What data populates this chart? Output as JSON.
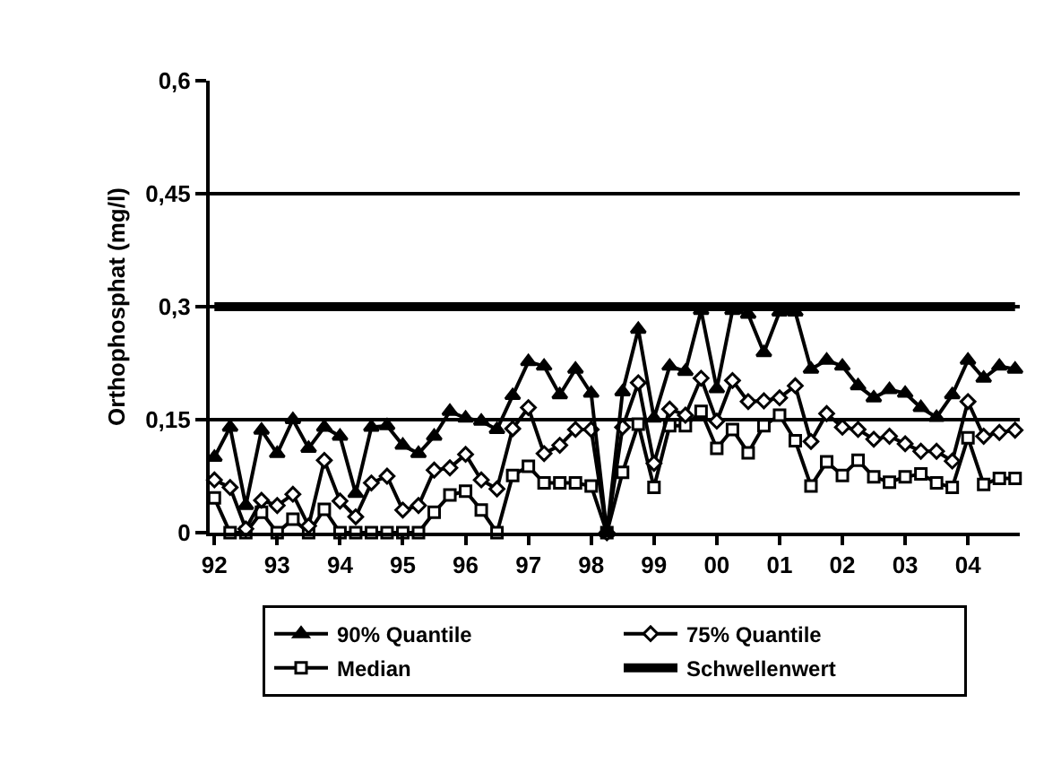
{
  "chart_data": {
    "type": "line",
    "ylabel": "Orthophosphat (mg/l)",
    "categories": [
      "92",
      null,
      null,
      null,
      "93",
      null,
      null,
      null,
      "94",
      null,
      null,
      null,
      "95",
      null,
      null,
      null,
      "96",
      null,
      null,
      null,
      "97",
      null,
      null,
      null,
      "98",
      null,
      null,
      null,
      "99",
      null,
      null,
      null,
      "00",
      null,
      null,
      null,
      "01",
      null,
      null,
      null,
      "02",
      null,
      null,
      null,
      "03",
      null,
      null,
      null,
      "04",
      null,
      null,
      null
    ],
    "series": [
      {
        "name": "90% Quantile",
        "color": "#000000",
        "marker": "triangle",
        "values": [
          0.1,
          0.14,
          0.036,
          0.136,
          0.105,
          0.15,
          0.112,
          0.14,
          0.128,
          0.052,
          0.14,
          0.142,
          0.116,
          0.105,
          0.128,
          0.161,
          0.152,
          0.148,
          0.137,
          0.182,
          0.227,
          0.221,
          0.183,
          0.217,
          0.185,
          0.0,
          0.187,
          0.27,
          0.152,
          0.221,
          0.214,
          0.295,
          0.191,
          0.295,
          0.29,
          0.239,
          0.293,
          0.293,
          0.217,
          0.229,
          0.221,
          0.195,
          0.179,
          0.19,
          0.185,
          0.166,
          0.153,
          0.183,
          0.229,
          0.205,
          0.221,
          0.217
        ]
      },
      {
        "name": "75% Quantile",
        "color": "#000000",
        "marker": "diamond",
        "values": [
          0.07,
          0.06,
          0.005,
          0.043,
          0.036,
          0.051,
          0.009,
          0.096,
          0.042,
          0.021,
          0.066,
          0.075,
          0.03,
          0.036,
          0.083,
          0.086,
          0.104,
          0.07,
          0.058,
          0.138,
          0.166,
          0.105,
          0.116,
          0.137,
          0.137,
          0.0,
          0.14,
          0.199,
          0.092,
          0.164,
          0.156,
          0.205,
          0.148,
          0.202,
          0.174,
          0.175,
          0.179,
          0.195,
          0.121,
          0.158,
          0.14,
          0.137,
          0.124,
          0.128,
          0.118,
          0.108,
          0.108,
          0.095,
          0.174,
          0.128,
          0.133,
          0.136
        ]
      },
      {
        "name": "Median",
        "color": "#000000",
        "marker": "square",
        "values": [
          0.046,
          0.0,
          0.0,
          0.027,
          0.0,
          0.018,
          0.0,
          0.031,
          0.0,
          0.0,
          0.0,
          0.0,
          0.0,
          0.0,
          0.027,
          0.05,
          0.055,
          0.03,
          0.0,
          0.076,
          0.088,
          0.066,
          0.066,
          0.066,
          0.062,
          0.0,
          0.08,
          0.144,
          0.06,
          0.142,
          0.142,
          0.161,
          0.112,
          0.137,
          0.106,
          0.142,
          0.156,
          0.122,
          0.062,
          0.094,
          0.076,
          0.096,
          0.074,
          0.067,
          0.074,
          0.078,
          0.066,
          0.06,
          0.126,
          0.064,
          0.072,
          0.072
        ]
      }
    ],
    "ref_lines": [
      {
        "axis": "y",
        "value": 0.3,
        "label": "Schwellenwert",
        "color": "#000000"
      }
    ],
    "ylim": [
      0,
      0.6
    ],
    "yticks": [
      0,
      {
        "value": 0.15,
        "label": "0,15"
      },
      {
        "value": 0.3,
        "label": "0,3"
      },
      {
        "value": 0.45,
        "label": "0,45"
      },
      {
        "value": 0.6,
        "label": "0,6"
      }
    ],
    "grid": "y",
    "legend": "bottom",
    "line_style": "solid"
  }
}
